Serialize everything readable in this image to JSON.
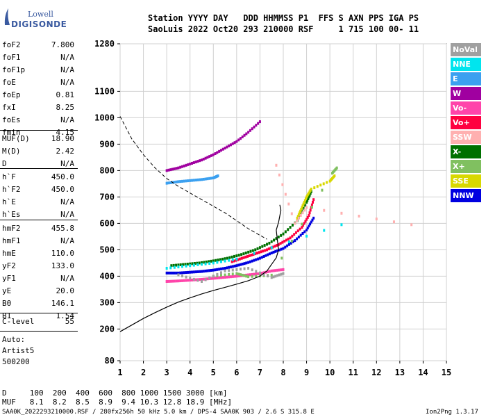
{
  "logo": {
    "top": "Lowell",
    "bottom": "DIGISONDE"
  },
  "header": {
    "row1": "Station YYYY DAY   DDD HHMMSS P1  FFS S AXN PPS IGA PS",
    "row2": "SaoLuis 2022 Oct20 293 210000 RSF     1 715 100 00- 11"
  },
  "params_group1": [
    {
      "k": "foF2",
      "v": "7.800"
    },
    {
      "k": "foF1",
      "v": "N/A"
    },
    {
      "k": "foF1p",
      "v": "N/A"
    },
    {
      "k": "foE",
      "v": "N/A"
    },
    {
      "k": "foEp",
      "v": "0.81"
    },
    {
      "k": "fxI",
      "v": "8.25"
    },
    {
      "k": "foEs",
      "v": "N/A"
    },
    {
      "k": "fmin",
      "v": "4.15"
    }
  ],
  "params_group2": [
    {
      "k": "MUF(D)",
      "v": "18.90"
    },
    {
      "k": "M(D)",
      "v": "2.42"
    },
    {
      "k": "D",
      "v": "N/A"
    }
  ],
  "params_group3": [
    {
      "k": "h`F",
      "v": "450.0"
    },
    {
      "k": "h`F2",
      "v": "450.0"
    },
    {
      "k": "h`E",
      "v": "N/A"
    },
    {
      "k": "h`Es",
      "v": "N/A"
    }
  ],
  "params_group4": [
    {
      "k": "hmF2",
      "v": "455.8"
    },
    {
      "k": "hmF1",
      "v": "N/A"
    },
    {
      "k": "hmE",
      "v": "110.0"
    },
    {
      "k": "yF2",
      "v": "133.0"
    },
    {
      "k": "yF1",
      "v": "N/A"
    },
    {
      "k": "yE",
      "v": "20.0"
    },
    {
      "k": "B0",
      "v": "146.1"
    },
    {
      "k": "B1",
      "v": "1.54"
    }
  ],
  "params_group5": [
    {
      "k": "C-level",
      "v": "55"
    }
  ],
  "auto_block": [
    "Auto:",
    "Artist5",
    "500200"
  ],
  "legend": [
    {
      "label": "NoVal",
      "color": "#a0a0a0"
    },
    {
      "label": "NNE",
      "color": "#00e5ee"
    },
    {
      "label": "E",
      "color": "#3ba0f0"
    },
    {
      "label": "W",
      "color": "#a000a0"
    },
    {
      "label": "Vo-",
      "color": "#ff44aa"
    },
    {
      "label": "Vo+",
      "color": "#ff0040"
    },
    {
      "label": "SSW",
      "color": "#ffb0b0"
    },
    {
      "label": "X-",
      "color": "#007000"
    },
    {
      "label": "X+",
      "color": "#80c060"
    },
    {
      "label": "SSE",
      "color": "#d8d800"
    },
    {
      "label": "NNW",
      "color": "#0000e0"
    }
  ],
  "footer": {
    "d_row": "D     100  200  400  600  800 1000 1500 3000 [km]",
    "muf_row": "MUF   8.1  8.2  8.5  8.9  9.4 10.3 12.8 18.9 [MHz]",
    "file_row": "SAA0K_2022293210000.RSF / 280fx256h 50 kHz 5.0 km / DPS-4 SAA0K 903 / 2.6 S 315.8 E",
    "version": "Ion2Png 1.3.17"
  },
  "chart_data": {
    "type": "scatter",
    "xlim": [
      1,
      15
    ],
    "ylim": [
      80,
      1280
    ],
    "xticks": [
      "1",
      "2",
      "3",
      "4",
      "5",
      "6",
      "7",
      "8",
      "9",
      "10",
      "11",
      "12",
      "13",
      "14",
      "15"
    ],
    "yticks": [
      "80",
      "200",
      "300",
      "400",
      "500",
      "600",
      "700",
      "800",
      "900",
      "1000",
      "1100",
      "1280"
    ],
    "grid": true,
    "profile_curve": [
      [
        1.0,
        190
      ],
      [
        1.5,
        215
      ],
      [
        2.0,
        240
      ],
      [
        2.5,
        262
      ],
      [
        3.0,
        283
      ],
      [
        3.5,
        302
      ],
      [
        4.0,
        318
      ],
      [
        4.5,
        333
      ],
      [
        5.0,
        346
      ],
      [
        5.5,
        358
      ],
      [
        6.0,
        370
      ],
      [
        6.5,
        383
      ],
      [
        7.0,
        400
      ],
      [
        7.3,
        420
      ],
      [
        7.5,
        445
      ],
      [
        7.7,
        470
      ],
      [
        7.8,
        500
      ],
      [
        7.75,
        535
      ],
      [
        7.7,
        575
      ],
      [
        7.8,
        605
      ],
      [
        7.9,
        650
      ],
      [
        7.85,
        670
      ]
    ],
    "muf_curve": [
      [
        1.0,
        1005
      ],
      [
        1.5,
        920
      ],
      [
        2.0,
        860
      ],
      [
        2.5,
        810
      ],
      [
        3.0,
        770
      ],
      [
        3.5,
        740
      ],
      [
        4.0,
        715
      ],
      [
        4.5,
        690
      ],
      [
        5.0,
        665
      ],
      [
        5.5,
        640
      ],
      [
        6.0,
        610
      ],
      [
        6.5,
        580
      ],
      [
        7.0,
        555
      ],
      [
        7.3,
        540
      ]
    ],
    "traces": [
      {
        "name": "NNW",
        "color": "#0000e0",
        "points": [
          [
            3.0,
            412
          ],
          [
            3.5,
            412
          ],
          [
            4.0,
            415
          ],
          [
            4.5,
            418
          ],
          [
            5.0,
            423
          ],
          [
            5.5,
            430
          ],
          [
            6.0,
            440
          ],
          [
            6.5,
            452
          ],
          [
            7.0,
            468
          ],
          [
            7.5,
            488
          ],
          [
            8.0,
            505
          ],
          [
            8.5,
            535
          ],
          [
            9.0,
            575
          ],
          [
            9.3,
            620
          ]
        ]
      },
      {
        "name": "Vo+",
        "color": "#ff0040",
        "points": [
          [
            5.8,
            455
          ],
          [
            6.3,
            470
          ],
          [
            6.8,
            485
          ],
          [
            7.3,
            500
          ],
          [
            7.8,
            520
          ],
          [
            8.3,
            545
          ],
          [
            8.8,
            585
          ],
          [
            9.1,
            630
          ],
          [
            9.3,
            690
          ]
        ]
      },
      {
        "name": "X-",
        "color": "#007000",
        "points": [
          [
            3.2,
            440
          ],
          [
            3.8,
            445
          ],
          [
            4.4,
            450
          ],
          [
            5.0,
            458
          ],
          [
            5.6,
            468
          ],
          [
            6.2,
            482
          ],
          [
            6.8,
            500
          ],
          [
            7.4,
            525
          ],
          [
            8.0,
            560
          ],
          [
            8.6,
            610
          ],
          [
            9.0,
            680
          ],
          [
            9.2,
            720
          ]
        ]
      },
      {
        "name": "Vo-",
        "color": "#ff44aa",
        "points": [
          [
            3.0,
            380
          ],
          [
            3.5,
            382
          ],
          [
            4.0,
            385
          ],
          [
            4.5,
            388
          ],
          [
            5.0,
            392
          ],
          [
            5.5,
            396
          ],
          [
            6.0,
            400
          ],
          [
            6.5,
            405
          ],
          [
            7.0,
            410
          ],
          [
            7.5,
            420
          ],
          [
            8.0,
            425
          ]
        ]
      },
      {
        "name": "W",
        "color": "#a000a0",
        "points": [
          [
            3.0,
            800
          ],
          [
            3.5,
            810
          ],
          [
            4.0,
            825
          ],
          [
            4.5,
            840
          ],
          [
            5.0,
            860
          ],
          [
            5.5,
            885
          ],
          [
            6.0,
            910
          ],
          [
            6.5,
            945
          ],
          [
            7.0,
            985
          ]
        ]
      },
      {
        "name": "E",
        "color": "#3ba0f0",
        "points": [
          [
            3.0,
            752
          ],
          [
            3.5,
            758
          ],
          [
            4.0,
            762
          ],
          [
            4.5,
            766
          ],
          [
            5.0,
            772
          ],
          [
            5.2,
            780
          ]
        ]
      },
      {
        "name": "SSE",
        "color": "#d8d800",
        "points": [
          [
            8.6,
            620
          ],
          [
            8.8,
            660
          ],
          [
            9.0,
            700
          ],
          [
            9.2,
            730
          ],
          [
            10.0,
            760
          ],
          [
            10.2,
            780
          ]
        ]
      },
      {
        "name": "X+",
        "color": "#80c060",
        "points": [
          [
            5.0,
            400
          ],
          [
            6.0,
            410
          ],
          [
            6.5,
            398
          ],
          [
            7.5,
            404
          ],
          [
            10.1,
            790
          ],
          [
            10.3,
            810
          ]
        ]
      },
      {
        "name": "NoVal",
        "color": "#a0a0a0",
        "points": [
          [
            3.5,
            405
          ],
          [
            4.5,
            380
          ],
          [
            5.5,
            420
          ],
          [
            6.5,
            430
          ],
          [
            7.5,
            395
          ],
          [
            8.0,
            410
          ]
        ]
      },
      {
        "name": "SSW",
        "color": "#ffb0b0",
        "points": [
          [
            7.7,
            820
          ],
          [
            8.5,
            600
          ],
          [
            9.0,
            660
          ],
          [
            13.5,
            595
          ]
        ]
      },
      {
        "name": "NNE",
        "color": "#00e5ee",
        "points": [
          [
            3.0,
            430
          ],
          [
            4.0,
            440
          ],
          [
            5.0,
            450
          ],
          [
            6.0,
            465
          ],
          [
            10.5,
            595
          ]
        ]
      }
    ]
  }
}
